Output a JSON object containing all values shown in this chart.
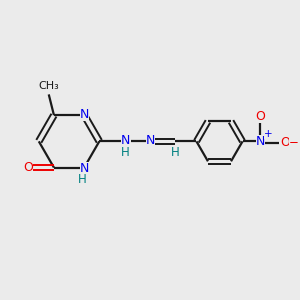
{
  "background_color": "#ebebeb",
  "bond_color": "#1a1a1a",
  "N_color": "#0000ee",
  "O_color": "#ee0000",
  "H_color": "#008080",
  "figsize": [
    3.0,
    3.0
  ],
  "dpi": 100,
  "xlim": [
    0,
    10
  ],
  "ylim": [
    0,
    10
  ]
}
